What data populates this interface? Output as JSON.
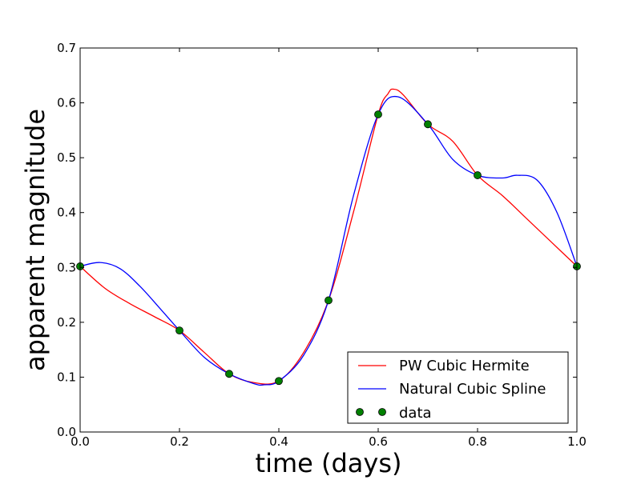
{
  "chart_data": {
    "type": "line",
    "title": "",
    "xlabel": "time (days)",
    "ylabel": "apparent magnitude",
    "xlim": [
      0.0,
      1.0
    ],
    "ylim": [
      0.0,
      0.7
    ],
    "xticks": [
      "0.0",
      "0.2",
      "0.4",
      "0.6",
      "0.8",
      "1.0"
    ],
    "yticks": [
      "0.0",
      "0.1",
      "0.2",
      "0.3",
      "0.4",
      "0.5",
      "0.6",
      "0.7"
    ],
    "grid": false,
    "legend_position": "lower-right",
    "data_points": {
      "name": "data",
      "color": "#008000",
      "x": [
        0.0,
        0.2,
        0.3,
        0.4,
        0.5,
        0.6,
        0.7,
        0.8,
        1.0
      ],
      "y": [
        0.302,
        0.185,
        0.106,
        0.093,
        0.24,
        0.579,
        0.561,
        0.468,
        0.302
      ]
    },
    "series": [
      {
        "name": "PW Cubic Hermite",
        "color": "#ff0000",
        "x": [
          0.0,
          0.05,
          0.1,
          0.15,
          0.2,
          0.25,
          0.3,
          0.35,
          0.4,
          0.45,
          0.5,
          0.55,
          0.6,
          0.62,
          0.63,
          0.65,
          0.7,
          0.75,
          0.8,
          0.85,
          0.9,
          0.95,
          1.0
        ],
        "y": [
          0.302,
          0.262,
          0.234,
          0.21,
          0.185,
          0.145,
          0.106,
          0.09,
          0.093,
          0.145,
          0.24,
          0.4,
          0.579,
          0.617,
          0.625,
          0.615,
          0.561,
          0.53,
          0.468,
          0.431,
          0.388,
          0.345,
          0.302
        ]
      },
      {
        "name": "Natural Cubic Spline",
        "color": "#0000ff",
        "x": [
          0.0,
          0.04,
          0.08,
          0.12,
          0.16,
          0.2,
          0.25,
          0.3,
          0.35,
          0.37,
          0.4,
          0.45,
          0.5,
          0.55,
          0.6,
          0.64,
          0.7,
          0.75,
          0.8,
          0.85,
          0.88,
          0.92,
          0.96,
          1.0
        ],
        "y": [
          0.302,
          0.309,
          0.298,
          0.266,
          0.226,
          0.185,
          0.136,
          0.106,
          0.088,
          0.086,
          0.093,
          0.14,
          0.24,
          0.43,
          0.579,
          0.611,
          0.561,
          0.497,
          0.468,
          0.463,
          0.468,
          0.459,
          0.4,
          0.302
        ]
      }
    ]
  }
}
